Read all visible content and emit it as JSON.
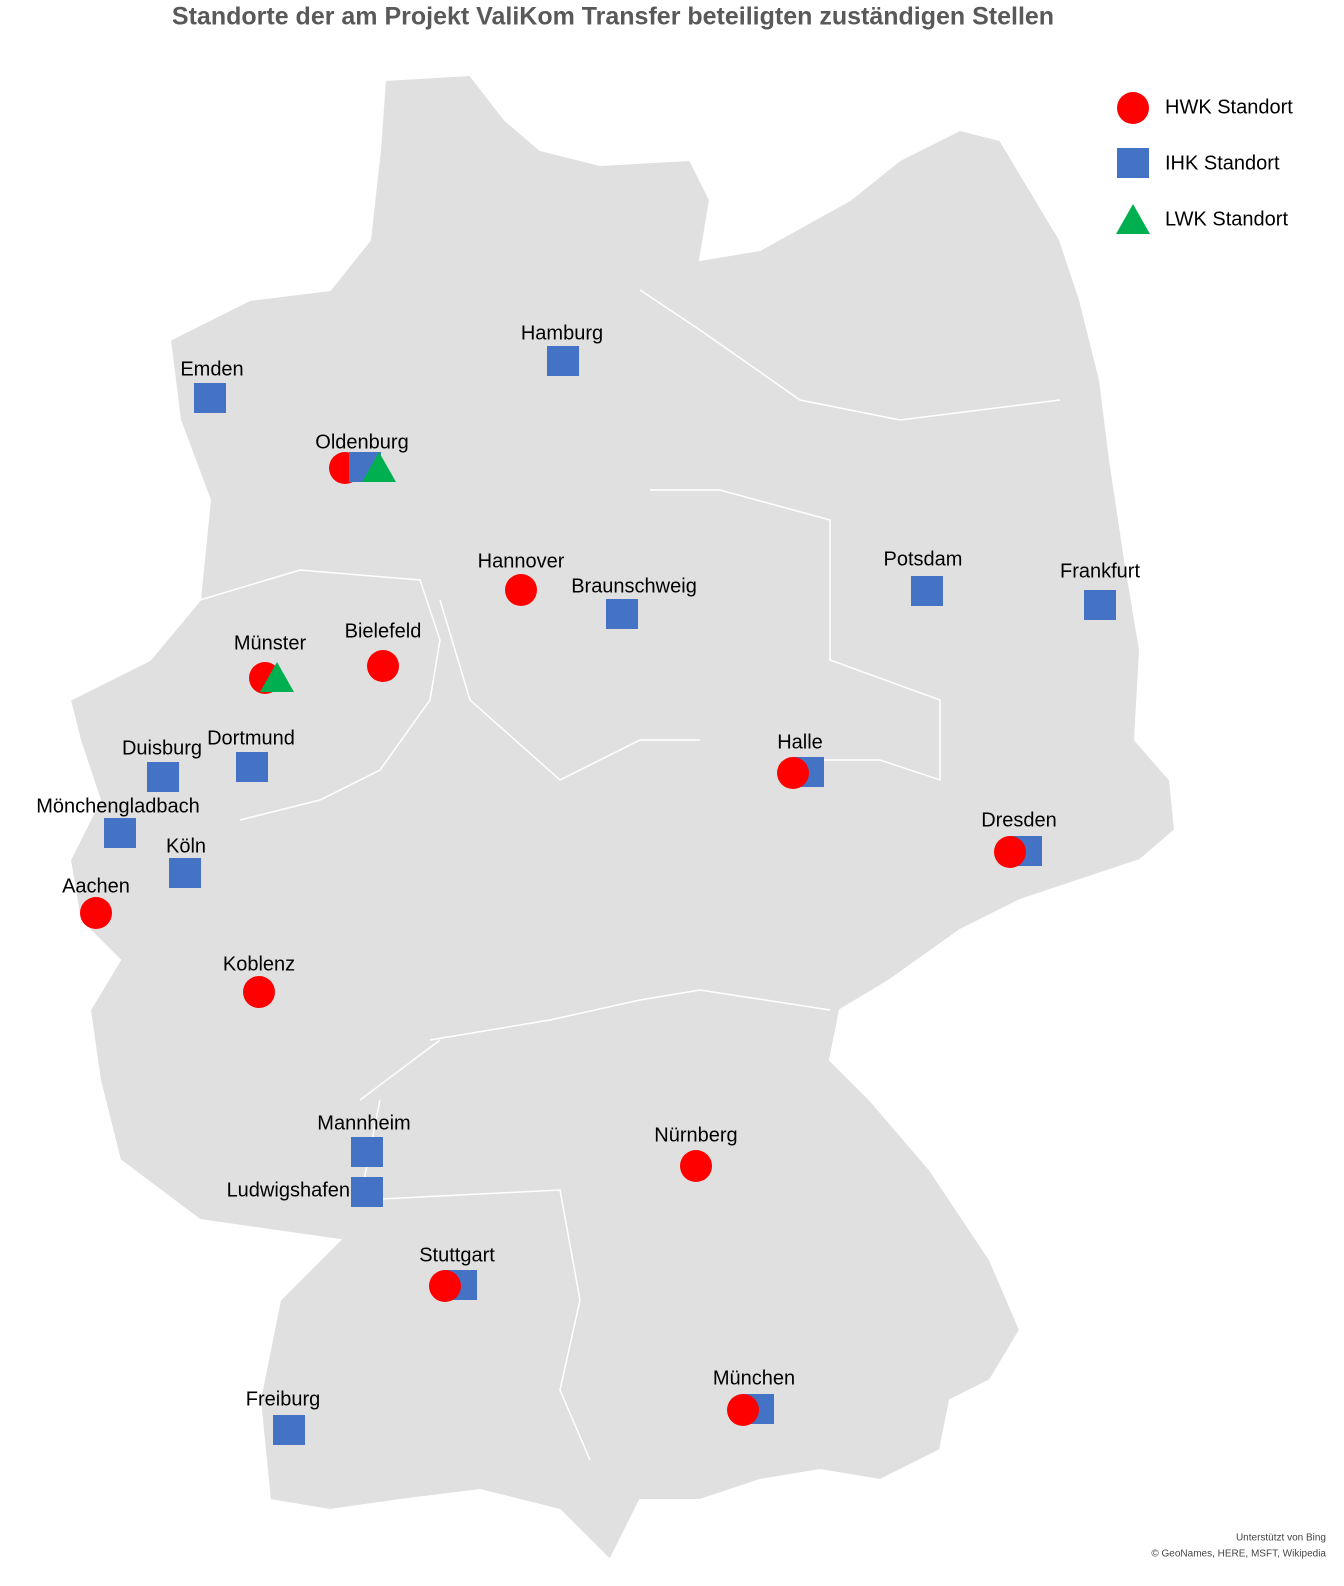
{
  "title": "Standorte der am Projekt ValiKom Transfer beteiligten zuständigen Stellen",
  "legend": [
    {
      "label": "HWK Standort",
      "shape": "circle",
      "color": "#ff0000"
    },
    {
      "label": "IHK Standort",
      "shape": "square",
      "color": "#4472c4"
    },
    {
      "label": "LWK Standort",
      "shape": "triangle",
      "color": "#00b050"
    }
  ],
  "locations": [
    {
      "name": "Hamburg",
      "markers": [
        1
      ]
    },
    {
      "name": "Emden",
      "markers": [
        1
      ]
    },
    {
      "name": "Oldenburg",
      "markers": [
        0,
        1,
        2
      ]
    },
    {
      "name": "Hannover",
      "markers": [
        0
      ]
    },
    {
      "name": "Braunschweig",
      "markers": [
        1
      ]
    },
    {
      "name": "Potsdam",
      "markers": [
        1
      ]
    },
    {
      "name": "Frankfurt",
      "markers": [
        1
      ]
    },
    {
      "name": "Münster",
      "markers": [
        0,
        2
      ]
    },
    {
      "name": "Bielefeld",
      "markers": [
        0
      ]
    },
    {
      "name": "Duisburg",
      "markers": [
        1
      ]
    },
    {
      "name": "Dortmund",
      "markers": [
        1
      ]
    },
    {
      "name": "Mönchengladbach",
      "markers": [
        1
      ]
    },
    {
      "name": "Köln",
      "markers": [
        1
      ]
    },
    {
      "name": "Aachen",
      "markers": [
        0
      ]
    },
    {
      "name": "Koblenz",
      "markers": [
        0
      ]
    },
    {
      "name": "Halle",
      "markers": [
        1,
        0
      ]
    },
    {
      "name": "Dresden",
      "markers": [
        1,
        0
      ]
    },
    {
      "name": "Mannheim",
      "markers": [
        1
      ]
    },
    {
      "name": "Ludwigshafen",
      "markers": [
        1
      ]
    },
    {
      "name": "Nürnberg",
      "markers": [
        0
      ]
    },
    {
      "name": "Stuttgart",
      "markers": [
        1,
        0
      ]
    },
    {
      "name": "Freiburg",
      "markers": [
        1
      ]
    },
    {
      "name": "München",
      "markers": [
        1,
        0
      ]
    }
  ],
  "attribution": [
    "Unterstützt von Bing",
    "© GeoNames, HERE, MSFT, Wikipedia"
  ]
}
